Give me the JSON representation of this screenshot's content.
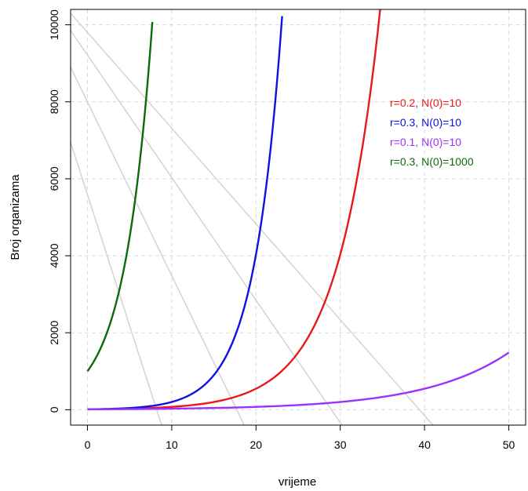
{
  "chart_data": {
    "type": "line",
    "title": "",
    "xlabel": "vrijeme",
    "ylabel": "Broj organizama",
    "xlim": [
      -2,
      52
    ],
    "ylim": [
      -400,
      10400
    ],
    "x_ticks": [
      0,
      10,
      20,
      30,
      40,
      50
    ],
    "y_ticks": [
      0,
      2000,
      4000,
      6000,
      8000,
      10000
    ],
    "x_tick_labels": [
      "0",
      "10",
      "20",
      "30",
      "40",
      "50"
    ],
    "y_tick_labels": [
      "0",
      "2000",
      "4000",
      "6000",
      "8000",
      "10000"
    ],
    "grid": "dashed",
    "legend_placement": "top-right",
    "series": [
      {
        "name": "r=0.2, N(0)=10",
        "color": "#e8191b",
        "r": 0.2,
        "n0": 10,
        "x": [
          0,
          5,
          10,
          15,
          20,
          25,
          30,
          33,
          35
        ],
        "y": [
          10,
          27,
          74,
          201,
          546,
          1484,
          4034,
          7354,
          10966
        ]
      },
      {
        "name": "r=0.3, N(0)=10",
        "color": "#1010e0",
        "r": 0.3,
        "n0": 10,
        "x": [
          0,
          5,
          10,
          15,
          18,
          20,
          22,
          23.1
        ],
        "y": [
          10,
          45,
          201,
          900,
          2212,
          4034,
          7357,
          10190
        ]
      },
      {
        "name": "r=0.1, N(0)=10",
        "color": "#9b30ff",
        "r": 0.1,
        "n0": 10,
        "x": [
          0,
          10,
          20,
          30,
          40,
          45,
          50
        ],
        "y": [
          10,
          27,
          74,
          201,
          546,
          900,
          1484
        ]
      },
      {
        "name": "r=0.3, N(0)=1000",
        "color": "#0b6b0b",
        "r": 0.3,
        "n0": 1000,
        "x": [
          0,
          2,
          4,
          6,
          7,
          7.7
        ],
        "y": [
          1000,
          1822,
          3320,
          6050,
          8166,
          10100
        ]
      }
    ],
    "guide_lines": [
      {
        "color": "#d3d3d3",
        "x": [
          -2,
          8.8
        ],
        "y": [
          6950,
          -400
        ]
      },
      {
        "color": "#d3d3d3",
        "x": [
          -2,
          18.6
        ],
        "y": [
          8900,
          -400
        ]
      },
      {
        "color": "#d3d3d3",
        "x": [
          -2,
          30.2
        ],
        "y": [
          9850,
          -400
        ]
      },
      {
        "color": "#d3d3d3",
        "x": [
          -2,
          41.0
        ],
        "y": [
          10300,
          -400
        ]
      }
    ]
  }
}
